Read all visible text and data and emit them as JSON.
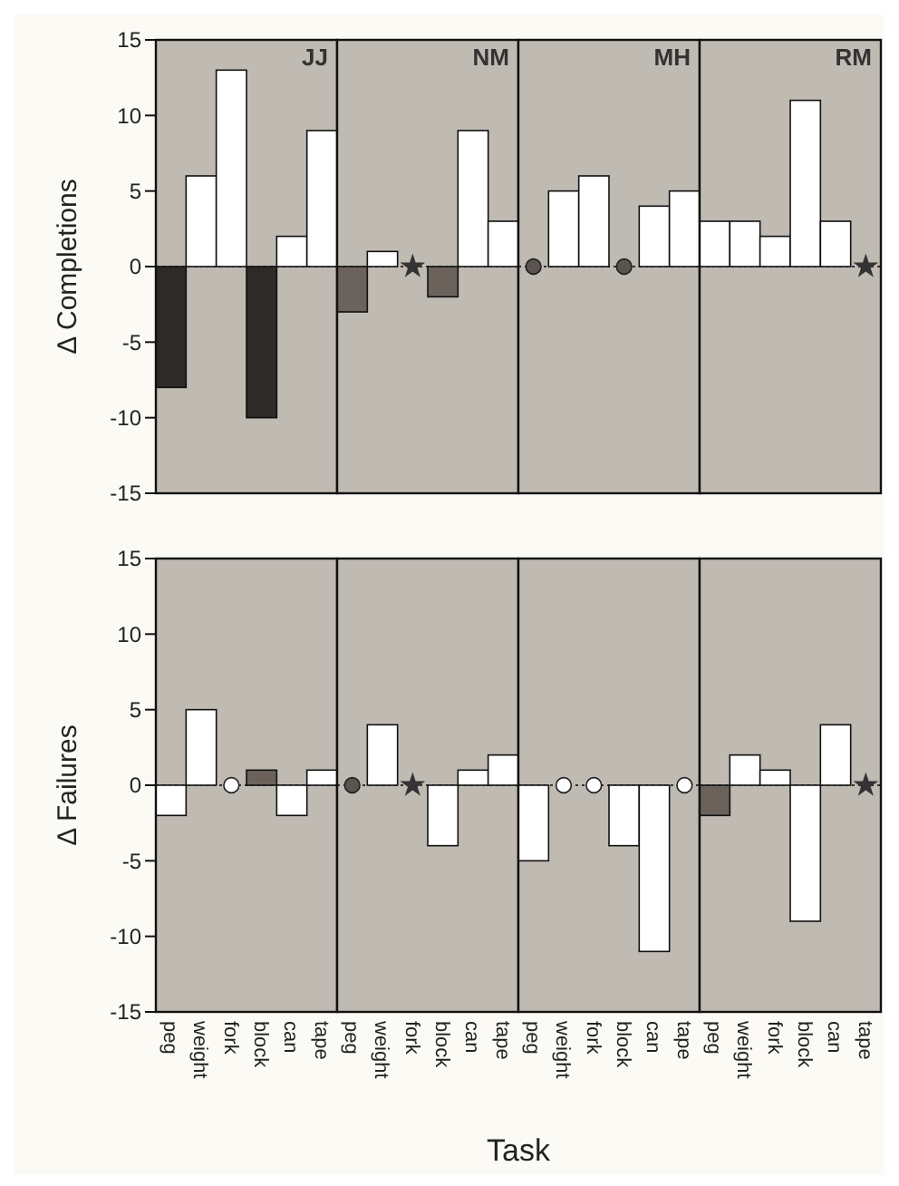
{
  "chart_data": [
    {
      "type": "bar",
      "annotations": [
        "JJ"
      ],
      "ylabel": "Δ Completions",
      "categories": [
        "peg",
        "weight",
        "fork",
        "block",
        "can",
        "tape"
      ],
      "ylim": [
        -15,
        15
      ],
      "yticks": [
        -15,
        -10,
        -5,
        0,
        5,
        10,
        15
      ],
      "tick_labels": "y",
      "ref_lines": [
        {
          "axis": "y",
          "value": 0,
          "line_style": "dotted",
          "color": "#333333"
        }
      ],
      "series": [
        {
          "values": [
            -8,
            6,
            13,
            -10,
            2,
            9
          ],
          "colors": [
            "#2e2a28",
            "#ffffff",
            "#ffffff",
            "#2e2a28",
            "#ffffff",
            "#ffffff"
          ]
        }
      ]
    },
    {
      "type": "bar",
      "annotations": [
        "NM"
      ],
      "categories": [
        "peg",
        "weight",
        "fork",
        "block",
        "can",
        "tape"
      ],
      "ylim": [
        -15,
        15
      ],
      "tick_labels": false,
      "ref_lines": [
        {
          "axis": "y",
          "value": 0,
          "line_style": "dotted",
          "color": "#333333"
        }
      ],
      "series": [
        {
          "values": [
            -3,
            1,
            null,
            -2,
            9,
            3
          ],
          "colors": [
            "#6b625c",
            "#ffffff",
            "#ffffff",
            "#6b625c",
            "#ffffff",
            "#ffffff"
          ]
        },
        {
          "type": "scatter",
          "marker": "star",
          "color": "#333333",
          "x": [
            "fork"
          ],
          "values": [
            0
          ]
        }
      ]
    },
    {
      "type": "bar",
      "annotations": [
        "MH"
      ],
      "categories": [
        "peg",
        "weight",
        "fork",
        "block",
        "can",
        "tape"
      ],
      "ylim": [
        -15,
        15
      ],
      "tick_labels": false,
      "ref_lines": [
        {
          "axis": "y",
          "value": 0,
          "line_style": "dotted",
          "color": "#333333"
        }
      ],
      "series": [
        {
          "values": [
            null,
            5,
            6,
            null,
            4,
            5
          ],
          "colors": [
            "#ffffff",
            "#ffffff",
            "#ffffff",
            "#ffffff",
            "#ffffff",
            "#ffffff"
          ]
        },
        {
          "type": "scatter",
          "marker": "circle",
          "color": "#5a5350",
          "x": [
            "peg",
            "block"
          ],
          "values": [
            0,
            0
          ]
        }
      ]
    },
    {
      "type": "bar",
      "annotations": [
        "RM"
      ],
      "categories": [
        "peg",
        "weight",
        "fork",
        "block",
        "can",
        "tape"
      ],
      "ylim": [
        -15,
        15
      ],
      "tick_labels": false,
      "ref_lines": [
        {
          "axis": "y",
          "value": 0,
          "line_style": "dotted",
          "color": "#333333"
        }
      ],
      "series": [
        {
          "values": [
            3,
            3,
            2,
            11,
            3,
            null
          ],
          "colors": [
            "#ffffff",
            "#ffffff",
            "#ffffff",
            "#ffffff",
            "#ffffff",
            "#ffffff"
          ]
        },
        {
          "type": "scatter",
          "marker": "star",
          "color": "#333333",
          "x": [
            "tape"
          ],
          "values": [
            0
          ]
        }
      ]
    },
    {
      "type": "bar",
      "ylabel": "Δ Failures",
      "xlabel": "Task",
      "categories": [
        "peg",
        "weight",
        "fork",
        "block",
        "can",
        "tape"
      ],
      "ylim": [
        -15,
        15
      ],
      "yticks": [
        -15,
        -10,
        -5,
        0,
        5,
        10,
        15
      ],
      "ref_lines": [
        {
          "axis": "y",
          "value": 0,
          "line_style": "dotted",
          "color": "#333333"
        }
      ],
      "series": [
        {
          "values": [
            -2,
            5,
            null,
            1,
            -2,
            1
          ],
          "colors": [
            "#ffffff",
            "#ffffff",
            "#ffffff",
            "#6b625c",
            "#ffffff",
            "#ffffff"
          ]
        },
        {
          "type": "scatter",
          "marker": "circle",
          "color": "#ffffff",
          "x": [
            "fork"
          ],
          "values": [
            0
          ]
        }
      ]
    },
    {
      "type": "bar",
      "categories": [
        "peg",
        "weight",
        "fork",
        "block",
        "can",
        "tape"
      ],
      "ylim": [
        -15,
        15
      ],
      "tick_labels": "x",
      "ref_lines": [
        {
          "axis": "y",
          "value": 0,
          "line_style": "dotted",
          "color": "#333333"
        }
      ],
      "series": [
        {
          "values": [
            null,
            4,
            null,
            -4,
            1,
            2
          ],
          "colors": [
            "#ffffff",
            "#ffffff",
            "#ffffff",
            "#ffffff",
            "#ffffff",
            "#ffffff"
          ]
        },
        {
          "type": "scatter",
          "marker": "circle",
          "color": "#5a5350",
          "x": [
            "peg"
          ],
          "values": [
            0
          ]
        },
        {
          "type": "scatter",
          "marker": "star",
          "color": "#333333",
          "x": [
            "fork"
          ],
          "values": [
            0
          ]
        }
      ]
    },
    {
      "type": "bar",
      "categories": [
        "peg",
        "weight",
        "fork",
        "block",
        "can",
        "tape"
      ],
      "ylim": [
        -15,
        15
      ],
      "tick_labels": "x",
      "ref_lines": [
        {
          "axis": "y",
          "value": 0,
          "line_style": "dotted",
          "color": "#333333"
        }
      ],
      "series": [
        {
          "values": [
            -5,
            null,
            null,
            -4,
            -11,
            null
          ],
          "colors": [
            "#ffffff",
            "#ffffff",
            "#ffffff",
            "#ffffff",
            "#ffffff",
            "#ffffff"
          ]
        },
        {
          "type": "scatter",
          "marker": "circle",
          "color": "#ffffff",
          "x": [
            "weight",
            "fork",
            "tape"
          ],
          "values": [
            0,
            0,
            0
          ]
        }
      ]
    },
    {
      "type": "bar",
      "categories": [
        "peg",
        "weight",
        "fork",
        "block",
        "can",
        "tape"
      ],
      "ylim": [
        -15,
        15
      ],
      "tick_labels": "x",
      "ref_lines": [
        {
          "axis": "y",
          "value": 0,
          "line_style": "dotted",
          "color": "#333333"
        }
      ],
      "series": [
        {
          "values": [
            -2,
            2,
            1,
            -9,
            4,
            null
          ],
          "colors": [
            "#6b625c",
            "#ffffff",
            "#ffffff",
            "#ffffff",
            "#ffffff",
            "#ffffff"
          ]
        },
        {
          "type": "scatter",
          "marker": "star",
          "color": "#333333",
          "x": [
            "tape"
          ],
          "values": [
            0
          ]
        }
      ]
    }
  ]
}
